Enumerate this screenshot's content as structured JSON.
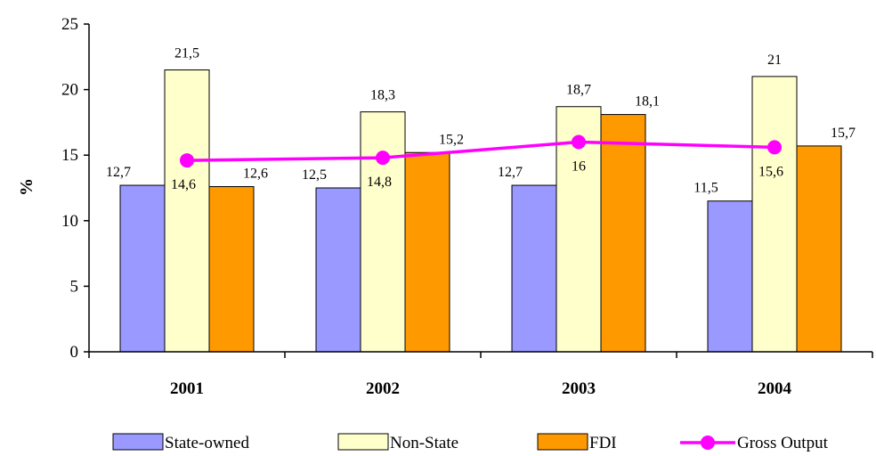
{
  "chart_data": {
    "type": "bar",
    "categories": [
      "2001",
      "2002",
      "2003",
      "2004"
    ],
    "series": [
      {
        "name": "State-owned",
        "values": [
          12.7,
          12.5,
          12.7,
          11.5
        ],
        "color": "#9999ff",
        "labels": [
          "12,7",
          "12,5",
          "12,7",
          "11,5"
        ]
      },
      {
        "name": "Non-State",
        "values": [
          21.5,
          18.3,
          18.7,
          21
        ],
        "color": "#ffffcc",
        "labels": [
          "21,5",
          "18,3",
          "18,7",
          "21"
        ]
      },
      {
        "name": "FDI",
        "values": [
          12.6,
          15.2,
          18.1,
          15.7
        ],
        "color": "#ff9900",
        "labels": [
          "12,6",
          "15,2",
          "18,1",
          "15,7"
        ]
      }
    ],
    "line_series": {
      "name": "Gross Output",
      "type": "line",
      "values": [
        14.6,
        14.8,
        16,
        15.6
      ],
      "color": "#ff00ff",
      "labels": [
        "14,6",
        "14,8",
        "16",
        "15,6"
      ]
    },
    "ylabel": "%",
    "ylim": [
      0,
      25
    ],
    "yticks": [
      "0",
      "5",
      "10",
      "15",
      "20",
      "25"
    ],
    "grid": false,
    "legend_position": "bottom"
  }
}
